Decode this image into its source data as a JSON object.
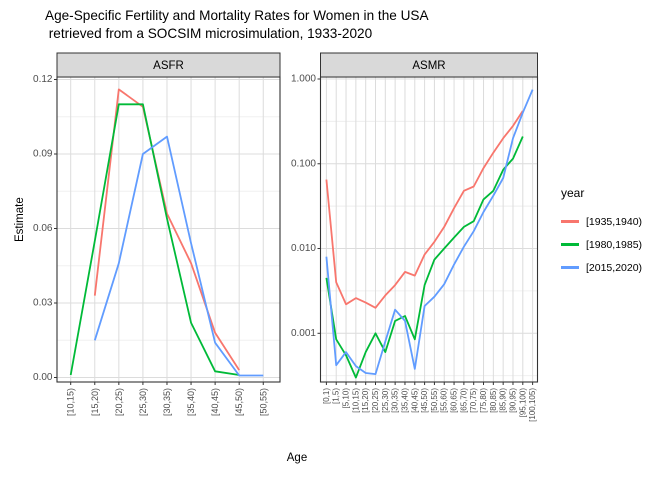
{
  "title": {
    "line1": "Age-Specific Fertility and Mortality Rates for Women in the USA",
    "line2": " retrieved from a SOCSIM microsimulation, 1933-2020"
  },
  "axes": {
    "y_label": "Estimate",
    "x_label": "Age"
  },
  "legend": {
    "title": "year",
    "entries": [
      {
        "label": "[1935,1940)",
        "color": "#F8766D"
      },
      {
        "label": "[1980,1985)",
        "color": "#00BA38"
      },
      {
        "label": "[2015,2020)",
        "color": "#619CFF"
      }
    ]
  },
  "chart_data": [
    {
      "type": "line",
      "title": "ASFR",
      "scale": "linear",
      "ylim": [
        0,
        0.12
      ],
      "y_ticks": [
        "0.00",
        "0.03",
        "0.06",
        "0.09",
        "0.12"
      ],
      "categories": [
        "[10,15)",
        "[15,20)",
        "[20,25)",
        "[25,30)",
        "[30,35)",
        "[35,40)",
        "[40,45)",
        "[45,50)",
        "[50,55)"
      ],
      "series": [
        {
          "name": "[1935,1940)",
          "color": "#F8766D",
          "values": [
            null,
            0.033,
            0.116,
            0.109,
            0.066,
            0.046,
            0.018,
            0.003,
            null
          ]
        },
        {
          "name": "[1980,1985)",
          "color": "#00BA38",
          "values": [
            0.001,
            0.055,
            0.11,
            0.11,
            0.064,
            0.022,
            0.0025,
            0.001,
            null
          ]
        },
        {
          "name": "[2015,2020)",
          "color": "#619CFF",
          "values": [
            null,
            0.015,
            0.046,
            0.09,
            0.097,
            0.054,
            0.014,
            0.0008,
            0.0008
          ]
        }
      ]
    },
    {
      "type": "line",
      "title": "ASMR",
      "scale": "log",
      "ylim": [
        0.001,
        1.0
      ],
      "y_ticks": [
        "1.000",
        "0.100",
        "0.010",
        "0.001"
      ],
      "categories": [
        "[0,1)",
        "[1,5)",
        "[5,10)",
        "[10,15)",
        "[15,20)",
        "[20,25)",
        "[25,30)",
        "[30,35)",
        "[35,40)",
        "[40,45)",
        "[45,50)",
        "[50,55)",
        "[55,60)",
        "[60,65)",
        "[65,70)",
        "[70,75)",
        "[75,80)",
        "[80,85)",
        "[85,90)",
        "[90,95)",
        "[95,100)",
        "[100,105)"
      ],
      "series": [
        {
          "name": "[1935,1940)",
          "color": "#F8766D",
          "values": [
            0.065,
            0.004,
            0.0022,
            0.0026,
            0.0023,
            0.002,
            0.0028,
            0.0037,
            0.0053,
            0.0048,
            0.0085,
            0.012,
            0.018,
            0.03,
            0.048,
            0.054,
            0.089,
            0.135,
            0.2,
            0.28,
            0.42,
            null
          ]
        },
        {
          "name": "[1980,1985)",
          "color": "#00BA38",
          "values": [
            0.0045,
            0.00085,
            0.00055,
            0.0003,
            0.0006,
            0.001,
            0.0006,
            0.0014,
            0.0016,
            0.00085,
            0.0037,
            0.0074,
            0.01,
            0.0135,
            0.018,
            0.021,
            0.038,
            0.048,
            0.085,
            0.115,
            0.21,
            null
          ]
        },
        {
          "name": "[2015,2020)",
          "color": "#619CFF",
          "values": [
            0.008,
            0.00042,
            0.0006,
            0.00041,
            0.00034,
            0.00033,
            0.0008,
            0.0019,
            0.0014,
            0.00038,
            0.0021,
            0.0027,
            0.0038,
            0.0065,
            0.0105,
            0.016,
            0.027,
            0.042,
            0.068,
            0.2,
            0.4,
            0.75
          ]
        }
      ]
    }
  ]
}
